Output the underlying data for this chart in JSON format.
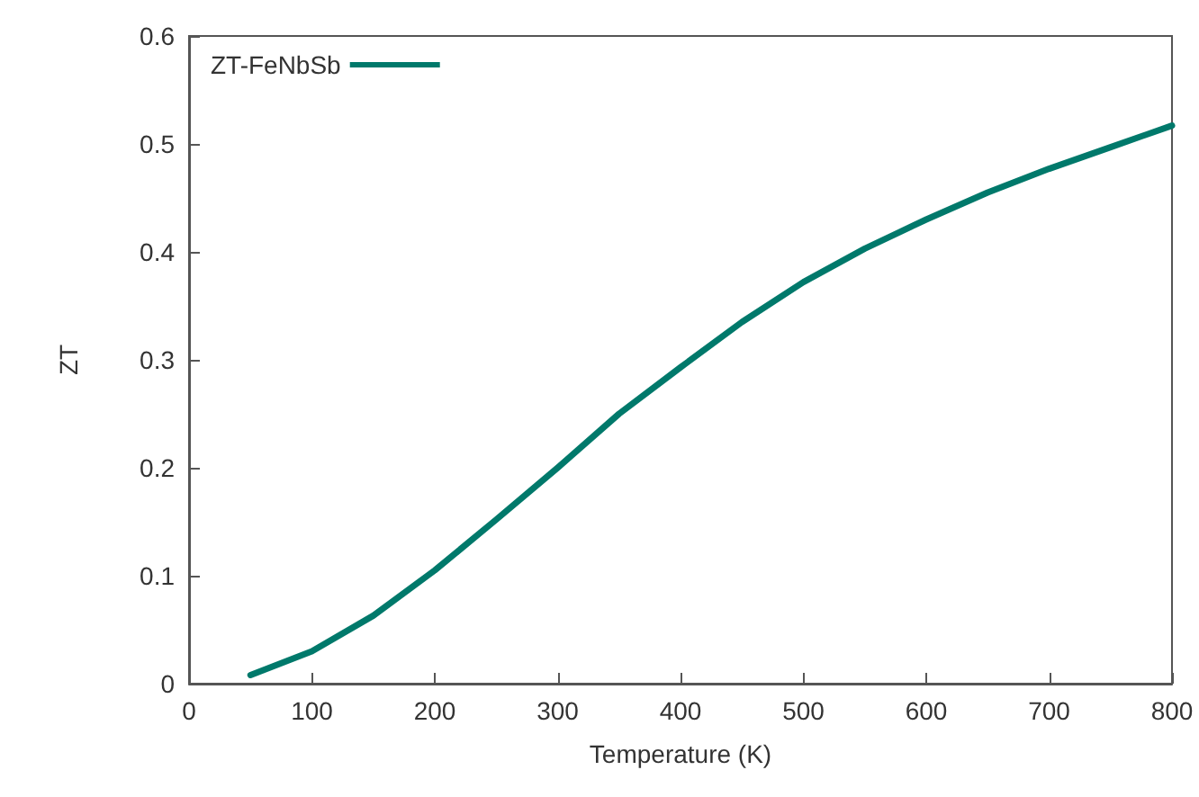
{
  "chart_data": {
    "type": "line",
    "xlabel": "Temperature (K)",
    "ylabel": "ZT",
    "x": [
      50,
      100,
      150,
      200,
      250,
      300,
      350,
      400,
      450,
      500,
      550,
      600,
      650,
      700,
      750,
      800
    ],
    "series": [
      {
        "name": "ZT-FeNbSb",
        "color": "#00796b",
        "values": [
          0.008,
          0.03,
          0.063,
          0.105,
          0.152,
          0.2,
          0.25,
          0.293,
          0.335,
          0.372,
          0.403,
          0.43,
          0.455,
          0.477,
          0.497,
          0.517
        ]
      }
    ],
    "xlim": [
      0,
      800
    ],
    "xticks": [
      0,
      100,
      200,
      300,
      400,
      500,
      600,
      700,
      800
    ],
    "ylim": [
      0,
      0.6
    ],
    "yticks": [
      0,
      0.1,
      0.2,
      0.3,
      0.4,
      0.5,
      0.6
    ],
    "grid": false,
    "legend": "top left",
    "marker": "none",
    "line_style": "solid"
  }
}
